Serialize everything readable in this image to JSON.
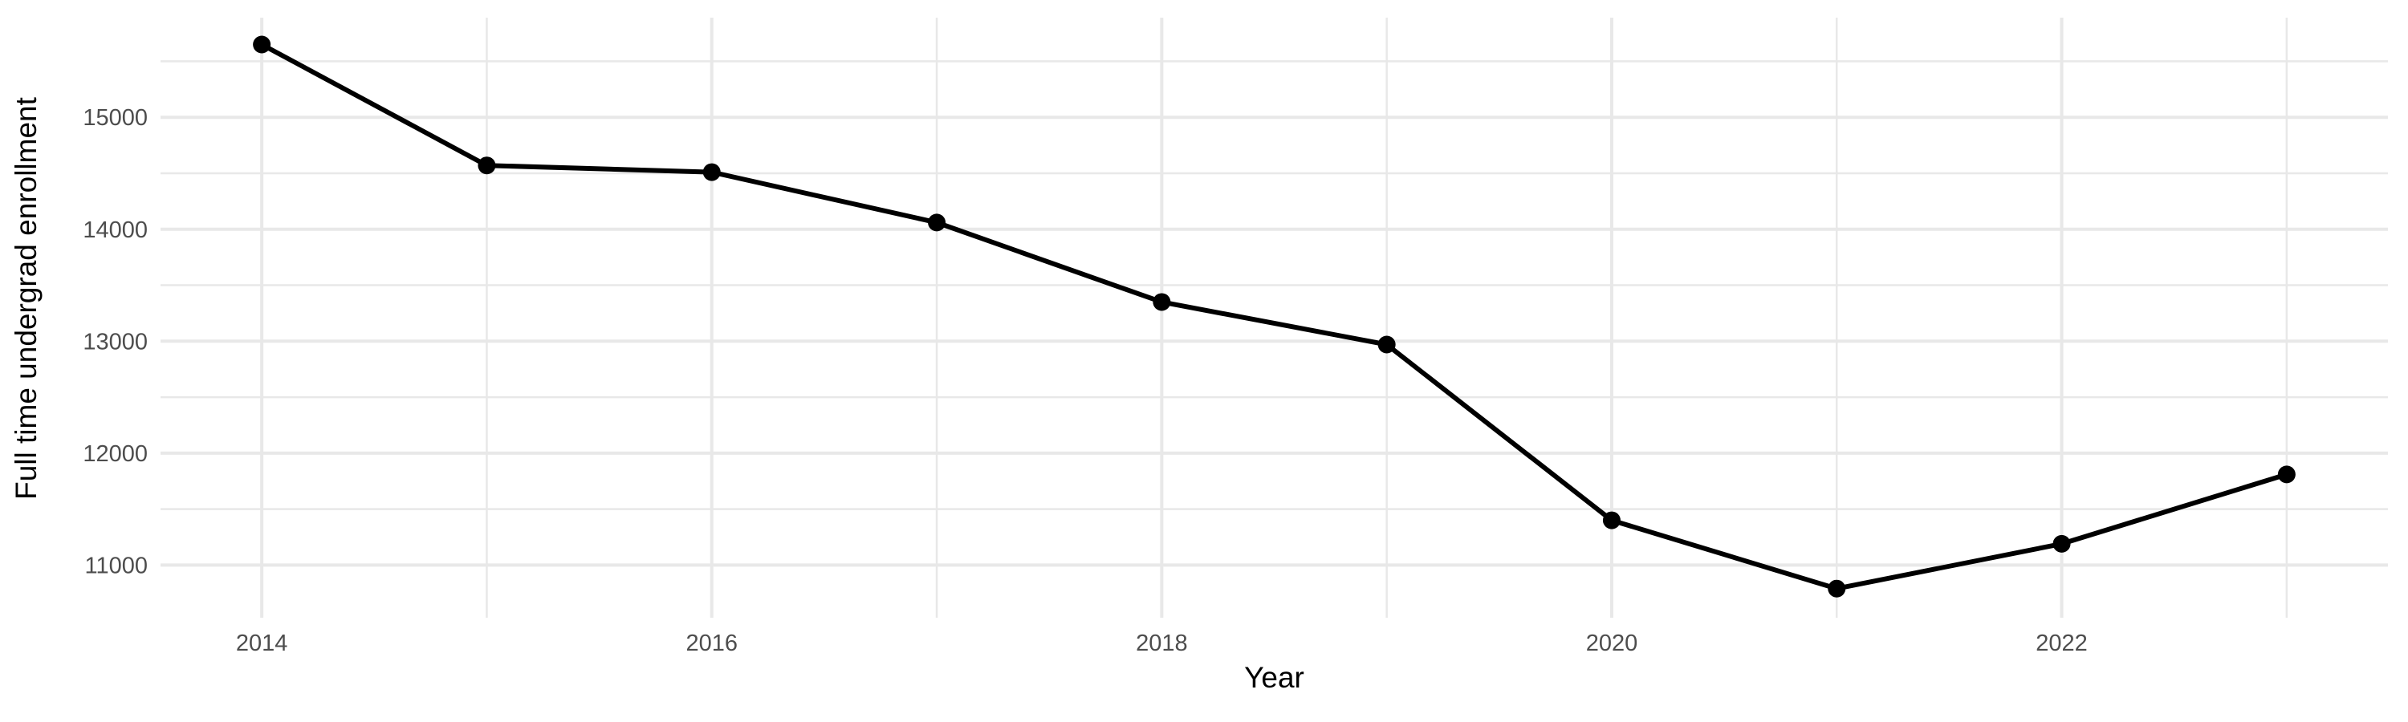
{
  "chart_data": {
    "type": "line",
    "title": "",
    "xlabel": "Year",
    "ylabel": "Full time undergrad enrollment",
    "x": [
      2014,
      2015,
      2016,
      2017,
      2018,
      2019,
      2020,
      2021,
      2022,
      2023
    ],
    "values": [
      15650,
      14570,
      14510,
      14060,
      13350,
      12970,
      11400,
      10790,
      11190,
      11810
    ],
    "series_name": "Full time undergrad enrollment by year",
    "x_major_ticks": [
      2014,
      2016,
      2018,
      2020,
      2022
    ],
    "x_minor_ticks": [
      2015,
      2017,
      2019,
      2021,
      2023
    ],
    "y_major_ticks": [
      11000,
      12000,
      13000,
      14000,
      15000
    ],
    "y_minor_ticks": [
      11500,
      12500,
      13500,
      14500,
      15500
    ],
    "xlim": [
      2013.55,
      2023.45
    ],
    "ylim": [
      10530,
      15890
    ],
    "grid": "major+minor",
    "legend": "none",
    "marker": "point",
    "colors": {
      "line": "#000000",
      "point": "#000000",
      "grid": "#e8e8e8",
      "tick_label": "#4d4d4d",
      "axis_title": "#000000",
      "background": "#ffffff"
    }
  }
}
